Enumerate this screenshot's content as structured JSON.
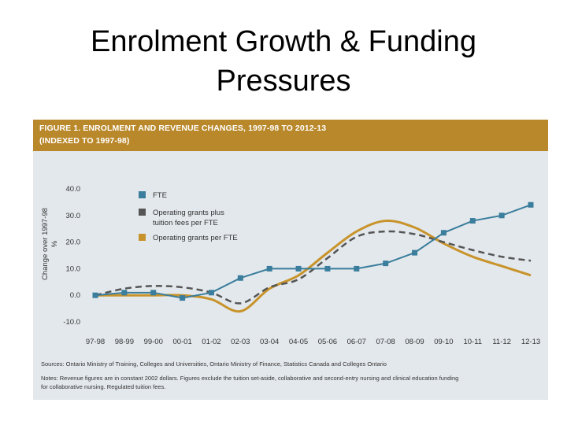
{
  "slide": {
    "title_line1": "Enrolment Growth & Funding",
    "title_line2": "Pressures"
  },
  "figure": {
    "header_line1": "FIGURE 1. ENROLMENT AND REVENUE CHANGES, 1997-98 TO 2012-13",
    "header_line2": "(INDEXED TO 1997-98)",
    "sources": "Sources: Ontario Ministry of Training, Colleges and Universities, Ontario Ministry of Finance, Statistics Canada and Colleges Ontario",
    "notes_line1": "Notes: Revenue figures are in constant 2002 dollars. Figures exclude the tuition set-aside, collaborative and second-entry nursing and clinical education funding",
    "notes_line2": "for collaborative nursing. Regulated tuition fees."
  },
  "chart_data": {
    "type": "line",
    "title": "Enrolment and revenue changes, 1997-98 to 2012-13 (indexed to 1997-98)",
    "ylabel_line1": "Change over 1997-98",
    "ylabel_line2": "%",
    "xlabel": "",
    "ylim": [
      -10,
      40
    ],
    "yticks": [
      "40.0",
      "30.0",
      "20.0",
      "10.0",
      "0.0",
      "-10.0"
    ],
    "categories": [
      "97-98",
      "98-99",
      "99-00",
      "00-01",
      "01-02",
      "02-03",
      "03-04",
      "04-05",
      "05-06",
      "06-07",
      "07-08",
      "08-09",
      "09-10",
      "10-11",
      "11-12",
      "12-13"
    ],
    "series": [
      {
        "name": "FTE",
        "color": "#3a7d9c",
        "style": "solid-markers",
        "values": [
          0,
          1,
          1,
          -1,
          1,
          6.5,
          10,
          10,
          10,
          10,
          12,
          16,
          23.5,
          28,
          30,
          34
        ]
      },
      {
        "name": "Operating grants plus tuition fees per FTE",
        "legend_line1": "Operating grants plus",
        "legend_line2": "tuition fees per FTE",
        "color": "#555555",
        "style": "dashed",
        "values": [
          0,
          2.5,
          3.5,
          3,
          1,
          -3,
          3,
          6,
          14,
          22,
          24,
          23,
          20,
          17,
          14.5,
          13
        ]
      },
      {
        "name": "Operating grants per FTE",
        "color": "#c8932a",
        "style": "solid",
        "values": [
          0,
          0,
          0,
          0,
          -1.5,
          -6,
          2.5,
          7.5,
          16,
          24,
          28,
          25.5,
          19.5,
          14.5,
          11,
          7.5
        ]
      }
    ],
    "legend_position": "top-left"
  }
}
